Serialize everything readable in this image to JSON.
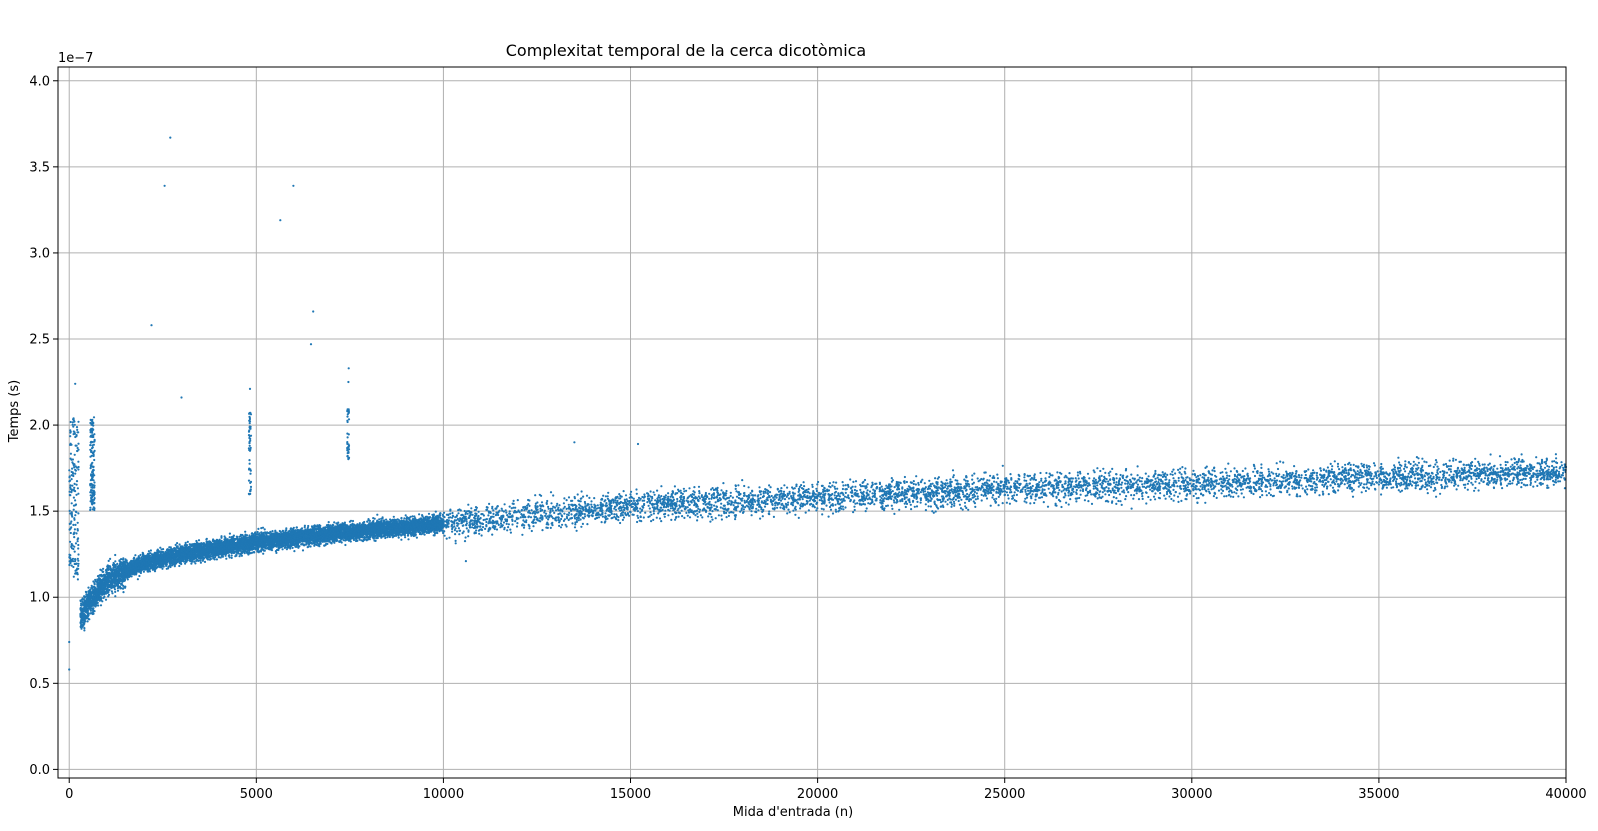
{
  "chart_data": {
    "type": "scatter",
    "title": "Complexitat temporal de la cerca dicotòmica",
    "xlabel": "Mida d'entrada (n)",
    "ylabel": "Temps (s)",
    "y_offset_label": "1e−7",
    "xlim": [
      -300,
      40000
    ],
    "ylim": [
      -0.05,
      4.08
    ],
    "y_scale_factor": 1e-07,
    "grid": true,
    "marker_color": "#1f77b4",
    "x_ticks": [
      0,
      5000,
      10000,
      15000,
      20000,
      25000,
      30000,
      35000,
      40000
    ],
    "x_tick_labels": [
      "0",
      "5000",
      "10000",
      "15000",
      "20000",
      "25000",
      "30000",
      "35000",
      "40000"
    ],
    "y_ticks": [
      0.0,
      0.5,
      1.0,
      1.5,
      2.0,
      2.5,
      3.0,
      3.5,
      4.0
    ],
    "y_tick_labels": [
      "0.0",
      "0.5",
      "1.0",
      "1.5",
      "2.0",
      "2.5",
      "3.0",
      "3.5",
      "4.0"
    ],
    "series": [
      {
        "values_description": "dense scatter of measured times (units 1e-7 s)",
        "trend": [
          {
            "x": 300,
            "y": 0.9
          },
          {
            "x": 1000,
            "y": 1.1
          },
          {
            "x": 2000,
            "y": 1.2
          },
          {
            "x": 3000,
            "y": 1.25
          },
          {
            "x": 5000,
            "y": 1.32
          },
          {
            "x": 7000,
            "y": 1.37
          },
          {
            "x": 10000,
            "y": 1.43
          },
          {
            "x": 15000,
            "y": 1.53
          },
          {
            "x": 20000,
            "y": 1.58
          },
          {
            "x": 25000,
            "y": 1.63
          },
          {
            "x": 30000,
            "y": 1.66
          },
          {
            "x": 35000,
            "y": 1.7
          },
          {
            "x": 40000,
            "y": 1.73
          }
        ],
        "outliers": [
          {
            "x": 2700,
            "y": 3.67
          },
          {
            "x": 2550,
            "y": 3.39
          },
          {
            "x": 5990,
            "y": 3.39
          },
          {
            "x": 5640,
            "y": 3.19
          },
          {
            "x": 6520,
            "y": 2.66
          },
          {
            "x": 6460,
            "y": 2.47
          },
          {
            "x": 2200,
            "y": 2.58
          },
          {
            "x": 3000,
            "y": 2.16
          },
          {
            "x": 7470,
            "y": 2.33
          },
          {
            "x": 7460,
            "y": 2.25
          },
          {
            "x": 4830,
            "y": 2.21
          },
          {
            "x": 160,
            "y": 2.24
          },
          {
            "x": 13500,
            "y": 1.9
          },
          {
            "x": 15200,
            "y": 1.89
          },
          {
            "x": 0,
            "y": 0.58
          },
          {
            "x": 0,
            "y": 0.74
          },
          {
            "x": 10600,
            "y": 1.21
          }
        ]
      }
    ]
  }
}
